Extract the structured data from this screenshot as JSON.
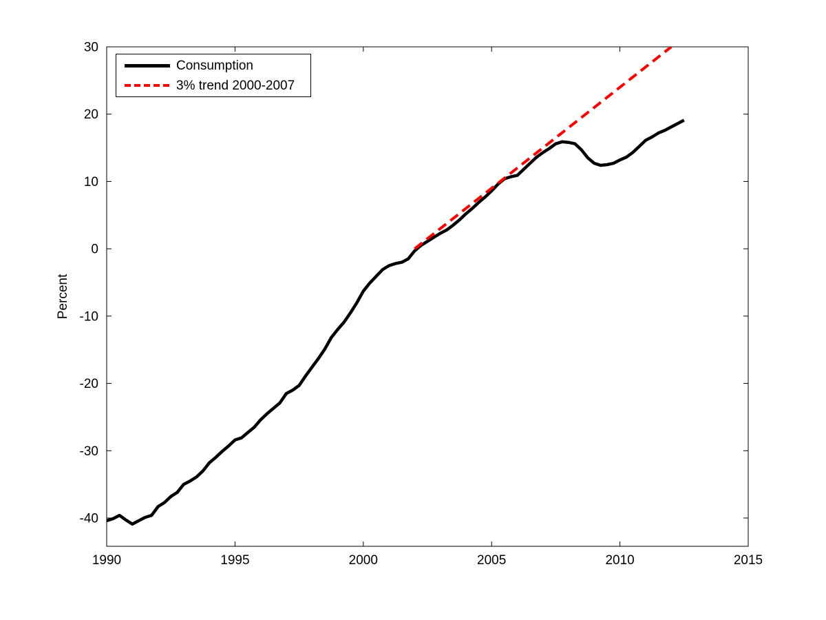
{
  "figure": {
    "background": "#ffffff",
    "axis_color": "#000000"
  },
  "chart_data": {
    "type": "line",
    "title": "",
    "xlabel": "",
    "ylabel": "Percent",
    "xlim": [
      1990,
      2015
    ],
    "ylim": [
      -44.2,
      30
    ],
    "xticks": [
      "1990",
      "1995",
      "2000",
      "2005",
      "2010",
      "2015"
    ],
    "xtick_values": [
      1990,
      1995,
      2000,
      2005,
      2010,
      2015
    ],
    "yticks": [
      "-40",
      "-30",
      "-20",
      "-10",
      "0",
      "10",
      "20",
      "30"
    ],
    "ytick_values": [
      -40,
      -30,
      -20,
      -10,
      0,
      10,
      20,
      30
    ],
    "grid": false,
    "legend_position": "top-left",
    "series": [
      {
        "name": "Consumption",
        "color": "#000000",
        "style": "solid",
        "x": [
          1990,
          1990.25,
          1990.5,
          1990.75,
          1991,
          1991.25,
          1991.5,
          1991.75,
          1992,
          1992.25,
          1992.5,
          1992.75,
          1993,
          1993.25,
          1993.5,
          1993.75,
          1994,
          1994.25,
          1994.5,
          1994.75,
          1995,
          1995.25,
          1995.5,
          1995.75,
          1996,
          1996.25,
          1996.5,
          1996.75,
          1997,
          1997.25,
          1997.5,
          1997.75,
          1998,
          1998.25,
          1998.5,
          1998.75,
          1999,
          1999.25,
          1999.5,
          1999.75,
          2000,
          2000.25,
          2000.5,
          2000.75,
          2001,
          2001.25,
          2001.5,
          2001.75,
          2002,
          2002.25,
          2002.5,
          2002.75,
          2003,
          2003.25,
          2003.5,
          2003.75,
          2004,
          2004.25,
          2004.5,
          2004.75,
          2005,
          2005.25,
          2005.5,
          2005.75,
          2006,
          2006.25,
          2006.5,
          2006.75,
          2007,
          2007.25,
          2007.5,
          2007.75,
          2008,
          2008.25,
          2008.5,
          2008.75,
          2009,
          2009.25,
          2009.5,
          2009.75,
          2010,
          2010.25,
          2010.5,
          2010.75,
          2011,
          2011.25,
          2011.5,
          2011.75,
          2012,
          2012.25,
          2012.5
        ],
        "y": [
          -40.4,
          -40.1,
          -39.6,
          -40.3,
          -40.9,
          -40.4,
          -39.9,
          -39.6,
          -38.3,
          -37.7,
          -36.8,
          -36.2,
          -35.0,
          -34.5,
          -33.9,
          -33.0,
          -31.8,
          -31.0,
          -30.1,
          -29.3,
          -28.4,
          -28.1,
          -27.3,
          -26.5,
          -25.4,
          -24.5,
          -23.7,
          -22.9,
          -21.5,
          -21.0,
          -20.3,
          -18.9,
          -17.6,
          -16.3,
          -14.9,
          -13.2,
          -12.0,
          -10.9,
          -9.5,
          -8.0,
          -6.3,
          -5.1,
          -4.1,
          -3.1,
          -2.5,
          -2.2,
          -2.0,
          -1.5,
          -0.3,
          0.5,
          1.1,
          1.7,
          2.3,
          2.8,
          3.5,
          4.3,
          5.2,
          6.0,
          6.9,
          7.7,
          8.6,
          9.6,
          10.4,
          10.7,
          10.9,
          11.8,
          12.7,
          13.6,
          14.3,
          14.9,
          15.6,
          15.9,
          15.8,
          15.6,
          14.7,
          13.5,
          12.7,
          12.4,
          12.5,
          12.7,
          13.2,
          13.6,
          14.3,
          15.2,
          16.1,
          16.6,
          17.2,
          17.6,
          18.1,
          18.6,
          19.1
        ]
      },
      {
        "name": "3% trend 2000-2007",
        "color": "#ff0000",
        "style": "dashed",
        "x": [
          2002,
          2012
        ],
        "y": [
          0,
          30
        ]
      }
    ]
  }
}
